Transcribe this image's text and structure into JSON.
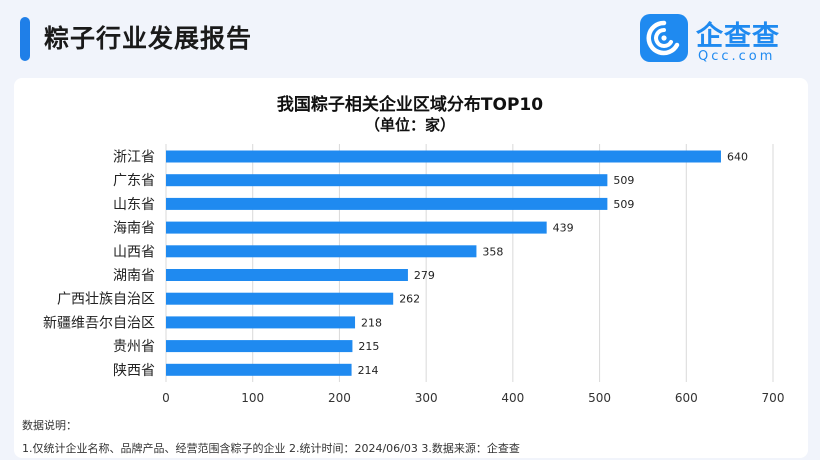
{
  "header": {
    "title": "粽子行业发展报告"
  },
  "logo": {
    "name": "企查查",
    "sub": "Qcc.com",
    "accent": "#1f8af0"
  },
  "chart_data": {
    "type": "bar",
    "orientation": "horizontal",
    "title": "我国粽子相关企业区域分布TOP10",
    "subtitle": "（单位：家）",
    "categories": [
      "浙江省",
      "广东省",
      "山东省",
      "海南省",
      "山西省",
      "湖南省",
      "广西壮族自治区",
      "新疆维吾尔自治区",
      "贵州省",
      "陕西省"
    ],
    "values": [
      640,
      509,
      509,
      439,
      358,
      279,
      262,
      218,
      215,
      214
    ],
    "xlim": [
      0,
      700
    ],
    "xticks": [
      "0",
      "100",
      "200",
      "300",
      "400",
      "500",
      "600",
      "700"
    ],
    "grid": "vertical",
    "bar_color": "#1f8af0"
  },
  "notes": {
    "heading": "数据说明：",
    "body": "1.仅统计企业名称、品牌产品、经营范围含粽子的企业   2.统计时间：2024/06/03   3.数据来源：企查查"
  }
}
